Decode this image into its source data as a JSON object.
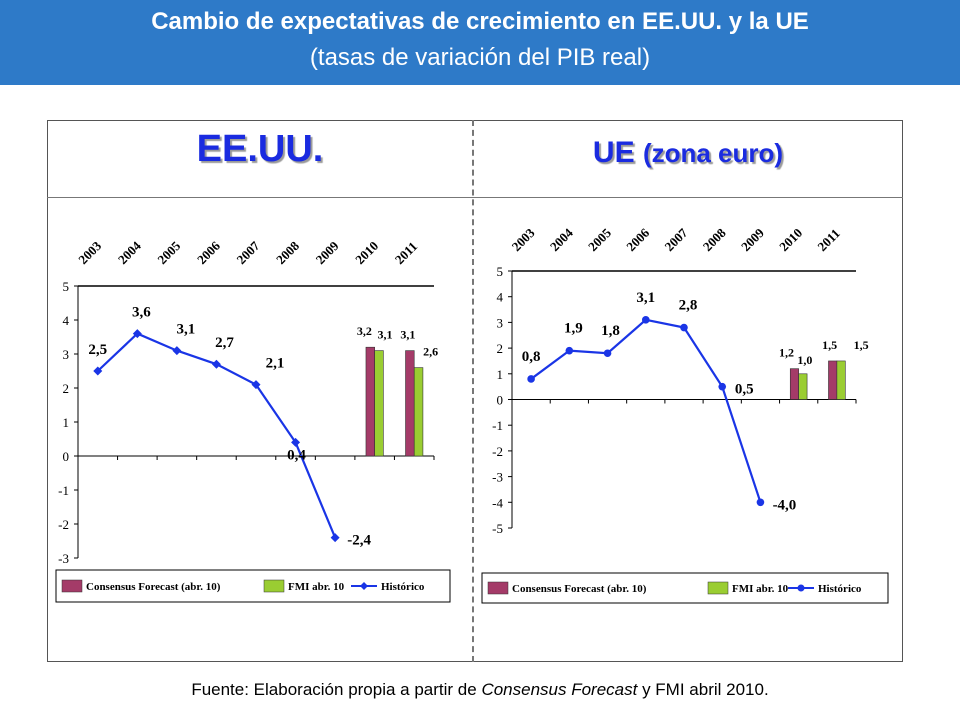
{
  "header": {
    "title": "Cambio de expectativas de crecimiento en EE.UU. y la UE",
    "subtitle": "(tasas de variación del PIB real)"
  },
  "panels": {
    "usa_title": "EE.UU.",
    "eu_title_main": "UE",
    "eu_title_sub": "(zona euro)"
  },
  "source": {
    "prefix": "Fuente: Elaboración propia a partir de ",
    "italic": "Consensus Forecast",
    "suffix": " y FMI abril 2010."
  },
  "colors": {
    "header_bg": "#2e7ac8",
    "title_blue": "#1a2be0",
    "line": "#1a35e6",
    "consensus": "#a43b68",
    "fmi": "#9acd32"
  },
  "chart_data": [
    {
      "type": "line",
      "panel": "EE.UU.",
      "categories": [
        "2003",
        "2004",
        "2005",
        "2006",
        "2007",
        "2008",
        "2009",
        "2010",
        "2011"
      ],
      "ylim": [
        -3,
        5
      ],
      "yticks": [
        "5",
        "4",
        "3",
        "2",
        "1",
        "0",
        "-1",
        "-2",
        "-3"
      ],
      "series": [
        {
          "name": "Histórico",
          "kind": "line",
          "values": [
            2.5,
            3.6,
            3.1,
            2.7,
            2.1,
            0.4,
            -2.4,
            null,
            null
          ],
          "labels": [
            "2,5",
            "3,6",
            "3,1",
            "2,7",
            "2,1",
            "0,4",
            "-2,4",
            null,
            null
          ]
        },
        {
          "name": "Consensus Forecast (abr. 10)",
          "kind": "bar",
          "values": [
            null,
            null,
            null,
            null,
            null,
            null,
            null,
            3.2,
            3.1
          ],
          "labels": [
            null,
            null,
            null,
            null,
            null,
            null,
            null,
            "3,2",
            "3,1"
          ]
        },
        {
          "name": "FMI abr. 10",
          "kind": "bar",
          "values": [
            null,
            null,
            null,
            null,
            null,
            null,
            null,
            3.1,
            2.6
          ],
          "labels": [
            null,
            null,
            null,
            null,
            null,
            null,
            null,
            "3,1",
            "2,6"
          ]
        }
      ],
      "legend": [
        "Consensus Forecast (abr. 10)",
        "FMI abr. 10",
        "Histórico"
      ]
    },
    {
      "type": "line",
      "panel": "UE (zona euro)",
      "categories": [
        "2003",
        "2004",
        "2005",
        "2006",
        "2007",
        "2008",
        "2009",
        "2010",
        "2011"
      ],
      "ylim": [
        -5,
        5
      ],
      "yticks": [
        "5",
        "4",
        "3",
        "2",
        "1",
        "0",
        "-1",
        "-2",
        "-3",
        "-4",
        "-5"
      ],
      "series": [
        {
          "name": "Histórico",
          "kind": "line",
          "values": [
            0.8,
            1.9,
            1.8,
            3.1,
            2.8,
            0.5,
            -4.0,
            null,
            null
          ],
          "labels": [
            "0,8",
            "1,9",
            "1,8",
            "3,1",
            "2,8",
            "0,5",
            "-4,0",
            null,
            null
          ]
        },
        {
          "name": "Consensus Forecast (abr. 10)",
          "kind": "bar",
          "values": [
            null,
            null,
            null,
            null,
            null,
            null,
            null,
            1.2,
            1.5
          ],
          "labels": [
            null,
            null,
            null,
            null,
            null,
            null,
            null,
            "1,2",
            "1,5"
          ]
        },
        {
          "name": "FMI abr. 10",
          "kind": "bar",
          "values": [
            null,
            null,
            null,
            null,
            null,
            null,
            null,
            1.0,
            1.5
          ],
          "labels": [
            null,
            null,
            null,
            null,
            null,
            null,
            null,
            "1,0",
            "1,5"
          ]
        }
      ],
      "legend": [
        "Consensus Forecast (abr. 10)",
        "FMI abr. 10",
        "Histórico"
      ]
    }
  ]
}
